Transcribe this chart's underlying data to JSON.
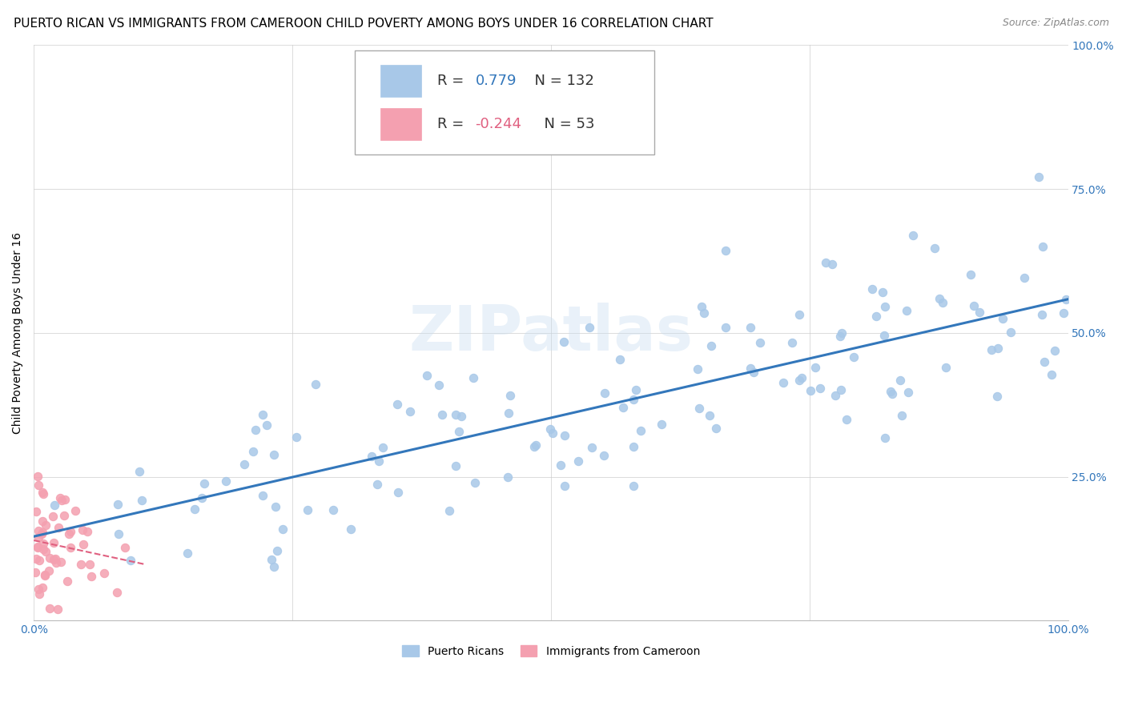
{
  "title": "PUERTO RICAN VS IMMIGRANTS FROM CAMEROON CHILD POVERTY AMONG BOYS UNDER 16 CORRELATION CHART",
  "source": "Source: ZipAtlas.com",
  "ylabel": "Child Poverty Among Boys Under 16",
  "pr_color": "#a8c8e8",
  "cam_color": "#f4a0b0",
  "pr_line_color": "#3377bb",
  "cam_line_color": "#e06080",
  "watermark": "ZIPatlas",
  "legend_r_pr": "0.779",
  "legend_n_pr": "132",
  "legend_r_cam": "-0.244",
  "legend_n_cam": "53",
  "title_fontsize": 11,
  "axis_label_fontsize": 10,
  "tick_fontsize": 10,
  "background_color": "#ffffff"
}
